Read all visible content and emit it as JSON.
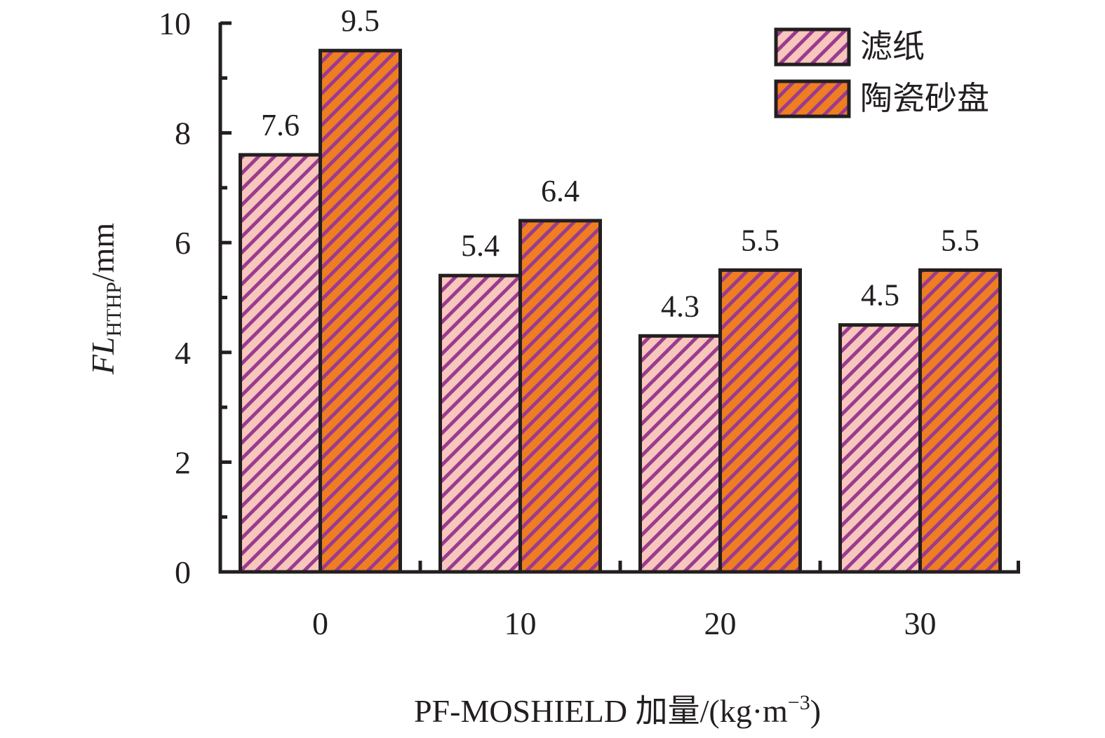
{
  "chart_data": {
    "type": "bar",
    "categories": [
      "0",
      "10",
      "20",
      "30"
    ],
    "series": [
      {
        "name": "滤纸",
        "values": [
          7.6,
          5.4,
          4.3,
          4.5
        ],
        "fill": "#f7c6bc",
        "hatch": "#9b3b8f"
      },
      {
        "name": "陶瓷砂盘",
        "values": [
          9.5,
          6.4,
          5.5,
          5.5
        ],
        "fill": "#ef7d22",
        "hatch": "#9b3b8f"
      }
    ],
    "data_labels": [
      [
        "7.6",
        "5.4",
        "4.3",
        "4.5"
      ],
      [
        "9.5",
        "6.4",
        "5.5",
        "5.5"
      ]
    ],
    "ylim": [
      0,
      10
    ],
    "yticks": [
      "0",
      "2",
      "4",
      "6",
      "8",
      "10"
    ],
    "ylabel": {
      "italic": "FL",
      "sub": "HTHP",
      "rest": "/mm"
    },
    "xlabel": {
      "main": "PF-MOSHIELD 加量/(kg·m",
      "sup": "−3",
      "end": ")"
    },
    "legend_position": "top-right",
    "grid": false,
    "colors": {
      "axis": "#231f20",
      "edge": "#231f20"
    }
  }
}
